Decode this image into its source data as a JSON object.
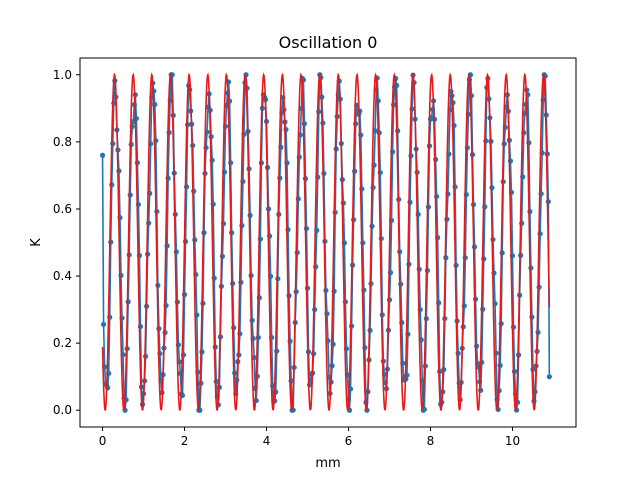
{
  "chart_data": {
    "type": "line",
    "title": "Oscillation 0",
    "xlabel": "mm",
    "ylabel": "K",
    "xlim": [
      -0.55,
      11.55
    ],
    "ylim": [
      -0.05,
      1.05
    ],
    "xticks": [
      0,
      2,
      4,
      6,
      8,
      10
    ],
    "xtick_labels": [
      "0",
      "2",
      "4",
      "6",
      "8",
      "10"
    ],
    "yticks": [
      0.0,
      0.2,
      0.4,
      0.6,
      0.8,
      1.0
    ],
    "ytick_labels": [
      "0.0",
      "0.2",
      "0.4",
      "0.6",
      "0.8",
      "1.0"
    ],
    "grid": false,
    "legend": "none",
    "series": [
      {
        "kind": "line-with-markers",
        "color": "#1f77b4",
        "x_start": 0.0,
        "x_end": 10.9,
        "step": 0.025,
        "period": 0.455,
        "amplitude_range": [
          0.0,
          1.0
        ],
        "first_value": 0.76,
        "last_value": 0.1
      },
      {
        "kind": "line",
        "color": "#e41a1c",
        "x_start": 0.0,
        "x_end": 10.9,
        "step": 0.01,
        "period": 0.455,
        "phase_offset": 0.065,
        "amplitude_range": [
          0.0,
          1.0
        ]
      }
    ]
  }
}
